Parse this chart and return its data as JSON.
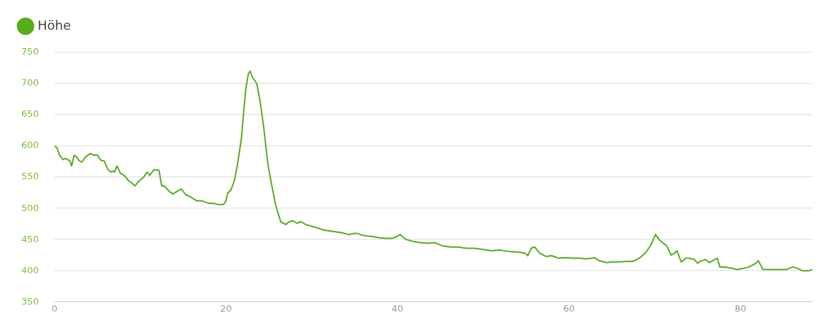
{
  "chart_data": {
    "type": "line",
    "legend": "top left",
    "grid": "y",
    "marker": "none",
    "xlim": [
      0,
      88.4
    ],
    "xticks": [
      0,
      20,
      40,
      60,
      80
    ],
    "ylim": [
      350,
      750
    ],
    "yticks": [
      350,
      400,
      450,
      500,
      550,
      600,
      650,
      700,
      750
    ],
    "series": [
      {
        "name": "Höhe",
        "color": "#55ad1c",
        "x": [
          0,
          0.3,
          0.6,
          1,
          1.3,
          1.8,
          2.0,
          2.3,
          2.6,
          2.9,
          3.2,
          3.6,
          4.2,
          4.6,
          5.0,
          5.4,
          5.8,
          6.2,
          6.6,
          6.8,
          7.0,
          7.3,
          7.7,
          8.1,
          8.6,
          9.0,
          9.4,
          9.8,
          10.4,
          10.8,
          11.1,
          11.6,
          12.2,
          12.5,
          12.9,
          13.4,
          13.8,
          14.4,
          14.8,
          15.3,
          15.9,
          16.6,
          17.2,
          17.6,
          18.0,
          18.5,
          19.1,
          19.7,
          20.0,
          20.2,
          20.6,
          21.0,
          21.4,
          21.8,
          22.1,
          22.3,
          22.6,
          22.8,
          23.1,
          23.6,
          24.0,
          24.4,
          24.9,
          25.3,
          25.8,
          26.4,
          27.0,
          27.3,
          27.8,
          28.3,
          28.7,
          29.3,
          30.3,
          31.5,
          32.5,
          33.5,
          34.3,
          35.2,
          36.2,
          37.0,
          37.8,
          38.6,
          39.4,
          40.0,
          40.3,
          41.0,
          41.8,
          42.6,
          43.6,
          44.4,
          45.2,
          46.2,
          47.1,
          48.0,
          49.0,
          50.0,
          51.0,
          52.0,
          53.0,
          54.0,
          54.9,
          55.2,
          55.6,
          56.0,
          56.6,
          57.3,
          58.0,
          58.8,
          59.6,
          60.4,
          61.3,
          62.0,
          62.6,
          63.0,
          63.5,
          64.4,
          65.0,
          65.9,
          66.8,
          67.4,
          67.8,
          68.4,
          69.0,
          69.5,
          69.9,
          70.1,
          70.5,
          71.0,
          71.4,
          71.9,
          72.3,
          72.6,
          73.1,
          73.6,
          74.0,
          74.6,
          75.0,
          75.3,
          75.9,
          76.4,
          77.0,
          77.3,
          77.6,
          78.2,
          79.0,
          79.6,
          80.4,
          81.0,
          81.8,
          82.1,
          82.6,
          83.0,
          83.6,
          84.5,
          85.4,
          86.1,
          86.6,
          87.2,
          88.0,
          88.4
        ],
        "values": [
          600,
          597,
          585,
          578,
          580,
          576,
          568,
          585,
          582,
          576,
          574,
          582,
          588,
          585,
          586,
          577,
          576,
          563,
          558,
          560,
          558,
          568,
          556,
          553,
          545,
          541,
          536,
          543,
          550,
          558,
          553,
          562,
          561,
          536,
          535,
          527,
          523,
          528,
          531,
          522,
          518,
          512,
          512,
          510,
          508,
          508,
          506,
          506,
          512,
          524,
          530,
          545,
          575,
          612,
          660,
          690,
          715,
          720,
          710,
          700,
          670,
          630,
          570,
          540,
          505,
          478,
          474,
          478,
          480,
          476,
          479,
          474,
          470,
          465,
          463,
          461,
          458,
          460,
          456,
          455,
          453,
          452,
          452,
          455,
          458,
          450,
          447,
          445,
          444,
          445,
          440,
          438,
          438,
          436,
          436,
          434,
          432,
          433,
          431,
          430,
          428,
          424,
          436,
          438,
          428,
          423,
          424,
          420,
          421,
          420,
          420,
          419,
          420,
          421,
          416,
          413,
          414,
          414,
          415,
          415,
          417,
          422,
          430,
          440,
          452,
          458,
          450,
          444,
          440,
          425,
          428,
          432,
          414,
          420,
          420,
          418,
          412,
          415,
          418,
          413,
          418,
          420,
          406,
          406,
          404,
          402,
          404,
          406,
          412,
          416,
          402,
          402,
          402,
          402,
          402,
          406,
          404,
          400,
          400,
          402
        ]
      }
    ]
  }
}
